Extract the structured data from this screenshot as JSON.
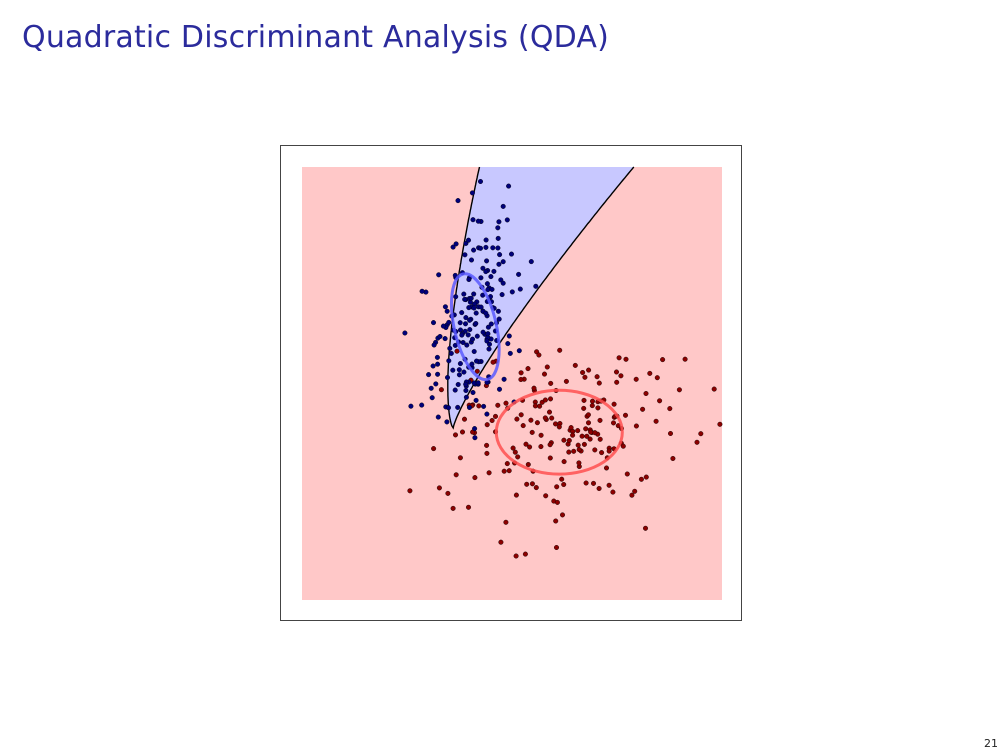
{
  "slide": {
    "title": "Quadratic Discriminant Analysis (QDA)",
    "page_number": "21"
  },
  "colors": {
    "title": "#2b2b9c",
    "region_class_0": "#ffc8c8",
    "region_class_1": "#c8c8ff",
    "points_class_0": "#8b0000",
    "points_class_1": "#00007a",
    "ellipse_class_0": "#ff5050",
    "ellipse_class_1": "#5a5aff",
    "boundary": "#000000"
  },
  "chart_data": {
    "type": "scatter",
    "title": "",
    "xlabel": "",
    "ylabel": "",
    "xlim": [
      -4,
      4
    ],
    "ylim": [
      -4,
      4
    ],
    "axes_visible": false,
    "grid": false,
    "legend": "none",
    "decision_boundary": {
      "form": "x = a*(y - y0)^2 + b*(y - y0) + x0",
      "x0": -1.12,
      "y0": -0.82,
      "a": 0.155,
      "b": 0.35
    },
    "series": [
      {
        "class": 0,
        "color": "#8b0000",
        "mean": [
          0.9,
          -0.9
        ],
        "cov": [
          [
            1.3,
            0.0
          ],
          [
            0.0,
            0.65
          ]
        ],
        "n": 200,
        "seed": 7
      },
      {
        "class": 1,
        "color": "#00007a",
        "mean": [
          -0.7,
          1.05
        ],
        "cov": [
          [
            0.2,
            0.18
          ],
          [
            0.18,
            0.9
          ]
        ],
        "n": 200,
        "seed": 3
      }
    ],
    "ellipses": [
      {
        "class": 0,
        "color": "#ff5050",
        "center": [
          0.9,
          -0.9
        ],
        "width": 2.4,
        "height": 1.55,
        "angle_deg": 0
      },
      {
        "class": 1,
        "color": "#5a5aff",
        "center": [
          -0.7,
          1.05
        ],
        "width": 0.8,
        "height": 2.0,
        "angle_deg": -13
      }
    ]
  }
}
